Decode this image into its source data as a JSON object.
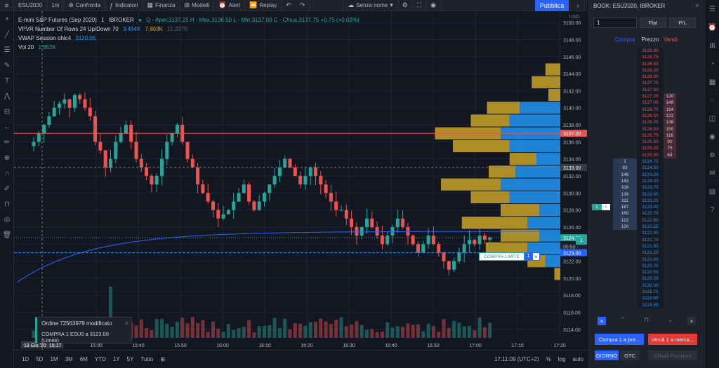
{
  "toolbar": {
    "symbol": "ESU2020",
    "interval": "1m",
    "compare": "Confronta",
    "indicators": "Indicatori",
    "finance": "Finanza",
    "models": "Modelli",
    "alert": "Alert",
    "replay": "Replay",
    "layout_name": "Senza nome",
    "publish": "Pubblica"
  },
  "legend": {
    "title": "E-mini S&P Futures (Sep 2020)",
    "interval": "1",
    "broker": "IBROKER",
    "ohlc": "O - Aper.3137.25  H - Max.3138.50  L - Min.3137.00  C - Chius.3137.75  +0.75 (+0.02%)",
    "vpvr_name": "VPVR Number Of Rows 24 Up/Down 70",
    "vpvr_v1": "3.494K",
    "vpvr_v2": "7.803K",
    "vpvr_v3": "11.297K",
    "vwap_name": "VWAP Session ohlc4",
    "vwap_value": "3120.05",
    "vol_name": "Vol 20",
    "vol_value": "1.952K"
  },
  "price_axis": {
    "currency": "USD",
    "labels": [
      "3150.00",
      "3148.00",
      "3146.00",
      "3144.00",
      "3142.00",
      "3140.00",
      "3138.00",
      "3136.00",
      "3134.00",
      "3132.00",
      "3130.00",
      "3128.00",
      "3126.00",
      "3124.00",
      "3122.00",
      "3120.00",
      "3118.00",
      "3116.00",
      "3114.00"
    ],
    "tag_red": "3137.00",
    "tag_cross": "3133.00",
    "tag_last": "3124.75",
    "tag_countdown": "00:50",
    "tag_limit": "3123.00"
  },
  "time_axis": {
    "labels": [
      "15:30",
      "15:40",
      "15:50",
      "16:00",
      "16:10",
      "16:20",
      "16:30",
      "16:40",
      "16:50",
      "17:00",
      "17:10",
      "17:20"
    ],
    "cursor_date": "19 Giu '20",
    "cursor_time": "15:17"
  },
  "order_toast": {
    "title": "Ordine 72563979 modificato",
    "detail": "COMPRA 1 ESU0 a 3123.00 (Limite)"
  },
  "limit_order": {
    "label": "COMPRA LIMITE",
    "qty": "1"
  },
  "position_qty": "1",
  "bottom": {
    "ranges": [
      "1D",
      "5D",
      "1M",
      "3M",
      "6M",
      "YTD",
      "1Y",
      "5Y",
      "Tutto"
    ],
    "clock": "17:11:09 (UTC+2)",
    "percent": "%",
    "log": "log",
    "auto": "auto"
  },
  "book": {
    "title": "BOOK: ESU2020, IBROKER",
    "qty": "1",
    "flat": "Flat",
    "pl": "P/L",
    "col_buy": "Compra",
    "col_price": "Prezzo",
    "col_sell": "Vendi",
    "rows": [
      {
        "p": "3129.00",
        "b": "",
        "s": "",
        "side": "ask"
      },
      {
        "p": "3128.75",
        "b": "",
        "s": "",
        "side": "ask"
      },
      {
        "p": "3128.50",
        "b": "",
        "s": "",
        "side": "ask"
      },
      {
        "p": "3128.25",
        "b": "",
        "s": "",
        "side": "ask"
      },
      {
        "p": "3128.00",
        "b": "",
        "s": "",
        "side": "ask"
      },
      {
        "p": "3127.75",
        "b": "",
        "s": "",
        "side": "ask"
      },
      {
        "p": "3127.50",
        "b": "",
        "s": "",
        "side": "ask"
      },
      {
        "p": "3127.25",
        "b": "",
        "s": "120",
        "side": "ask"
      },
      {
        "p": "3127.00",
        "b": "",
        "s": "149",
        "side": "ask"
      },
      {
        "p": "3126.75",
        "b": "",
        "s": "114",
        "side": "ask"
      },
      {
        "p": "3126.50",
        "b": "",
        "s": "121",
        "side": "ask"
      },
      {
        "p": "3126.25",
        "b": "",
        "s": "136",
        "side": "ask"
      },
      {
        "p": "3126.00",
        "b": "",
        "s": "150",
        "side": "ask"
      },
      {
        "p": "3125.75",
        "b": "",
        "s": "116",
        "side": "ask"
      },
      {
        "p": "3125.50",
        "b": "",
        "s": "92",
        "side": "ask"
      },
      {
        "p": "3125.25",
        "b": "",
        "s": "75",
        "side": "ask"
      },
      {
        "p": "3125.00",
        "b": "",
        "s": "64",
        "side": "ask"
      },
      {
        "p": "3124.75",
        "b": "1",
        "s": "",
        "side": "bid"
      },
      {
        "p": "3124.50",
        "b": "83",
        "s": "",
        "side": "bid"
      },
      {
        "p": "3124.25",
        "b": "148",
        "s": "",
        "side": "bid"
      },
      {
        "p": "3124.00",
        "b": "143",
        "s": "",
        "side": "bid"
      },
      {
        "p": "3123.75",
        "b": "108",
        "s": "",
        "side": "bid"
      },
      {
        "p": "3123.50",
        "b": "139",
        "s": "",
        "side": "bid"
      },
      {
        "p": "3123.25",
        "b": "111",
        "s": "",
        "side": "bid"
      },
      {
        "p": "3123.00",
        "b": "187",
        "s": "",
        "side": "bid"
      },
      {
        "p": "3122.75",
        "b": "160",
        "s": "",
        "side": "bid"
      },
      {
        "p": "3122.50",
        "b": "122",
        "s": "",
        "side": "bid"
      },
      {
        "p": "3122.25",
        "b": "120",
        "s": "",
        "side": "bid"
      },
      {
        "p": "3122.00",
        "b": "",
        "s": "",
        "side": "bid"
      },
      {
        "p": "3121.75",
        "b": "",
        "s": "",
        "side": "bid"
      },
      {
        "p": "3121.50",
        "b": "",
        "s": "",
        "side": "bid"
      },
      {
        "p": "3121.25",
        "b": "",
        "s": "",
        "side": "bid"
      },
      {
        "p": "3121.00",
        "b": "",
        "s": "",
        "side": "bid"
      },
      {
        "p": "3120.75",
        "b": "",
        "s": "",
        "side": "bid"
      },
      {
        "p": "3120.50",
        "b": "",
        "s": "",
        "side": "bid"
      },
      {
        "p": "3120.25",
        "b": "",
        "s": "",
        "side": "bid"
      },
      {
        "p": "3120.00",
        "b": "",
        "s": "",
        "side": "bid"
      },
      {
        "p": "3119.75",
        "b": "",
        "s": "",
        "side": "bid"
      },
      {
        "p": "3119.50",
        "b": "",
        "s": "",
        "side": "bid"
      },
      {
        "p": "3119.25",
        "b": "",
        "s": "",
        "side": "bid"
      }
    ],
    "working_order_price": "3123.00",
    "working_order_qty": "1",
    "buy_market": "Compra 1 a pre...",
    "sell_market": "Vendi 1 a merca...",
    "day": "GIORNO",
    "gtc": "GTC",
    "close_position": "Chiudi Posizioni"
  },
  "colors": {
    "up": "#26a69a",
    "down": "#ef5350",
    "vp_up": "#2196f3",
    "vp_down": "#c9a227",
    "accent": "#2962ff"
  },
  "chart_data": {
    "type": "candlestick",
    "ylim": [
      3113,
      3151
    ],
    "price_lines": {
      "red_level": 3137.0,
      "crosshair": 3133.0,
      "last": 3124.75,
      "limit": 3123.0
    },
    "closes": [
      3136,
      3137,
      3138,
      3139,
      3140,
      3140.5,
      3141,
      3140,
      3141.5,
      3141,
      3140,
      3139,
      3136,
      3135,
      3133,
      3134,
      3136,
      3137,
      3138,
      3136,
      3134,
      3133,
      3132,
      3131,
      3132,
      3134,
      3136,
      3137,
      3138,
      3136,
      3134,
      3133,
      3131,
      3130,
      3129,
      3128,
      3127,
      3127.5,
      3128,
      3129,
      3130,
      3131,
      3129,
      3128,
      3129,
      3130,
      3131,
      3132,
      3133,
      3134,
      3133,
      3132,
      3131,
      3132,
      3133,
      3132,
      3131,
      3130,
      3129,
      3128,
      3128,
      3127,
      3126,
      3125,
      3126,
      3127,
      3126,
      3125,
      3124,
      3125,
      3126,
      3127,
      3126,
      3125,
      3124,
      3123,
      3124,
      3125,
      3124,
      3123,
      3122,
      3121,
      3122,
      3123,
      3124,
      3124.5,
      3124,
      3125,
      3124.5,
      3124.75
    ],
    "volume_profile": [
      {
        "price": 3144.5,
        "up": 0,
        "down": 25
      },
      {
        "price": 3143.0,
        "up": 0,
        "down": 48
      },
      {
        "price": 3141.5,
        "up": 0,
        "down": 20
      },
      {
        "price": 3140.0,
        "up": 68,
        "down": 55
      },
      {
        "price": 3138.5,
        "up": 85,
        "down": 65
      },
      {
        "price": 3137.0,
        "up": 100,
        "down": 110
      },
      {
        "price": 3135.5,
        "up": 85,
        "down": 95
      },
      {
        "price": 3134.0,
        "up": 40,
        "down": 45
      },
      {
        "price": 3132.5,
        "up": 75,
        "down": 45
      },
      {
        "price": 3131.0,
        "up": 100,
        "down": 100
      },
      {
        "price": 3129.5,
        "up": 85,
        "down": 65
      },
      {
        "price": 3128.0,
        "up": 35,
        "down": 65
      },
      {
        "price": 3126.5,
        "up": 55,
        "down": 110
      },
      {
        "price": 3125.0,
        "up": 35,
        "down": 65
      },
      {
        "price": 3123.5,
        "up": 55,
        "down": 70
      },
      {
        "price": 3122.0,
        "up": 25,
        "down": 30
      },
      {
        "price": 3120.5,
        "up": 0,
        "down": 10
      }
    ]
  }
}
